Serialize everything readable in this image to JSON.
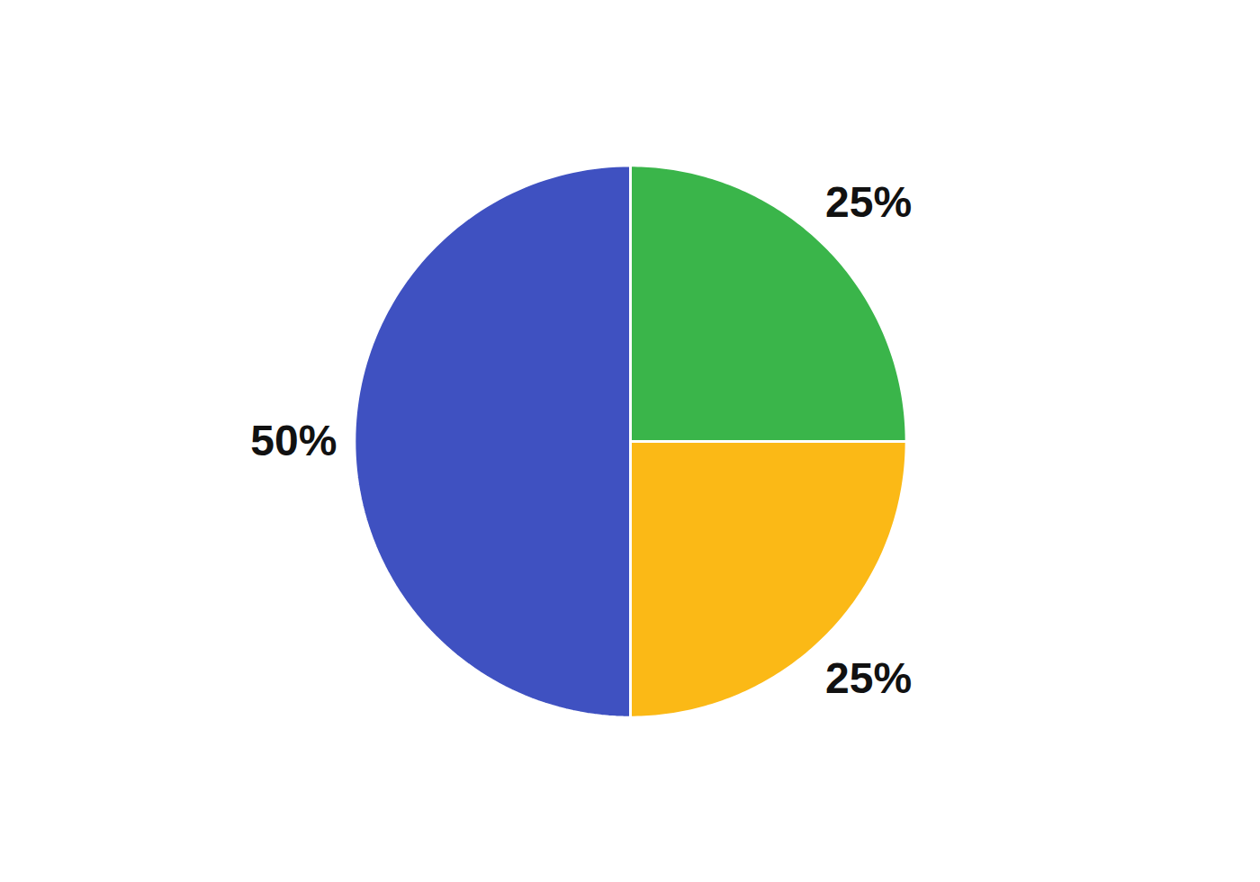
{
  "chart_data": {
    "type": "pie",
    "values": [
      25,
      25,
      50
    ],
    "value_labels": [
      "25%",
      "25%",
      "50%"
    ],
    "colors": [
      "#3ab54a",
      "#fbb916",
      "#3f51c1"
    ],
    "data_labels": true
  }
}
